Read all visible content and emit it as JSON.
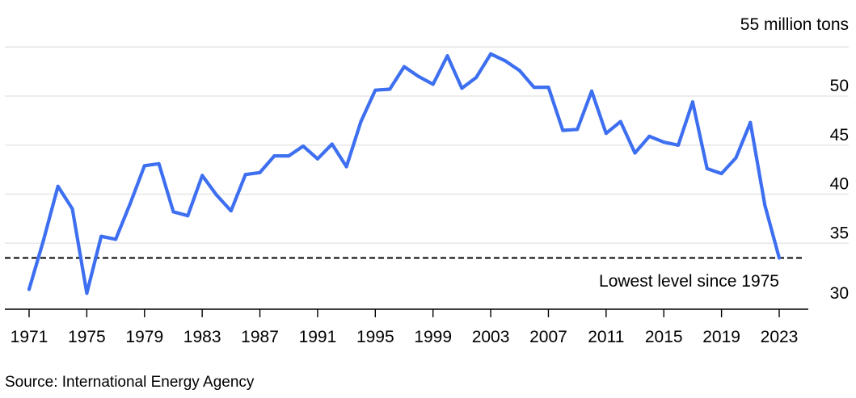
{
  "chart_data": {
    "type": "line",
    "unit_label": "55 million tons",
    "source": "Source: International Energy Agency",
    "annotation": "Lowest level since 1975",
    "reference_line": 33.5,
    "ylim": [
      30,
      55
    ],
    "xlim": [
      1971,
      2023
    ],
    "y_ticks": [
      {
        "value": 30,
        "label": "30"
      },
      {
        "value": 35,
        "label": "35"
      },
      {
        "value": 40,
        "label": "40"
      },
      {
        "value": 45,
        "label": "45"
      },
      {
        "value": 50,
        "label": "50"
      }
    ],
    "x_ticks": [
      {
        "value": 1971,
        "label": "1971"
      },
      {
        "value": 1975,
        "label": "1975"
      },
      {
        "value": 1979,
        "label": "1979"
      },
      {
        "value": 1983,
        "label": "1983"
      },
      {
        "value": 1987,
        "label": "1987"
      },
      {
        "value": 1991,
        "label": "1991"
      },
      {
        "value": 1995,
        "label": "1995"
      },
      {
        "value": 1999,
        "label": "1999"
      },
      {
        "value": 2003,
        "label": "2003"
      },
      {
        "value": 2007,
        "label": "2007"
      },
      {
        "value": 2011,
        "label": "2011"
      },
      {
        "value": 2015,
        "label": "2015"
      },
      {
        "value": 2019,
        "label": "2019"
      },
      {
        "value": 2023,
        "label": "2023"
      }
    ],
    "series_color": "#3d6ff0",
    "grid": true,
    "x": [
      1971,
      1972,
      1973,
      1974,
      1975,
      1976,
      1977,
      1978,
      1979,
      1980,
      1981,
      1982,
      1983,
      1984,
      1985,
      1986,
      1987,
      1988,
      1989,
      1990,
      1991,
      1992,
      1993,
      1994,
      1995,
      1996,
      1997,
      1998,
      1999,
      2000,
      2001,
      2002,
      2003,
      2004,
      2005,
      2006,
      2007,
      2008,
      2009,
      2010,
      2011,
      2012,
      2013,
      2014,
      2015,
      2016,
      2017,
      2018,
      2019,
      2020,
      2021,
      2022,
      2023
    ],
    "values": [
      30.3,
      35.3,
      40.8,
      38.5,
      29.9,
      35.7,
      35.4,
      39.0,
      42.9,
      43.1,
      38.2,
      37.8,
      41.9,
      39.9,
      38.3,
      42.0,
      42.2,
      43.9,
      43.9,
      44.9,
      43.6,
      45.1,
      42.8,
      47.4,
      50.6,
      50.7,
      53.0,
      52.0,
      51.2,
      54.1,
      50.8,
      51.9,
      54.3,
      53.6,
      52.6,
      50.9,
      50.9,
      46.5,
      46.6,
      50.5,
      46.2,
      47.4,
      44.2,
      45.9,
      45.3,
      45.0,
      49.4,
      42.6,
      42.1,
      43.7,
      47.3,
      38.9,
      33.5
    ]
  }
}
